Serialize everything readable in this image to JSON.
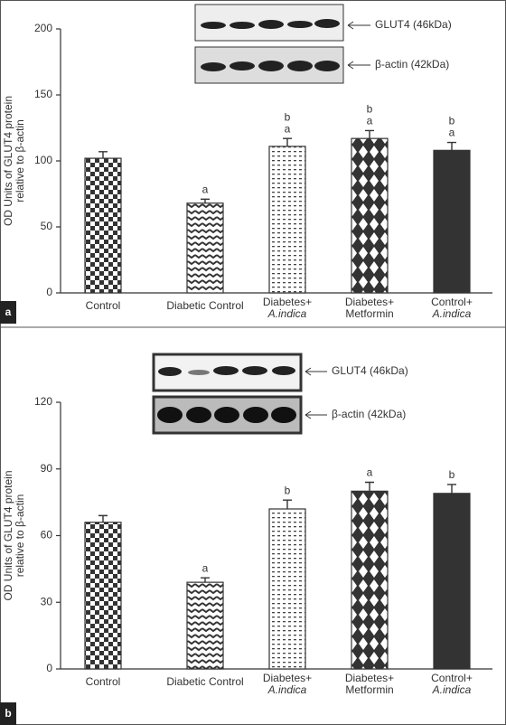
{
  "chart_data": [
    {
      "type": "bar",
      "panel_label": "a",
      "ylabel": [
        "OD Units of GLUT4  protein",
        "relative to β-actin"
      ],
      "blot_labels": [
        "GLUT4 (46kDa)",
        "β-actin (42kDa)"
      ],
      "categories": [
        [
          "Control"
        ],
        [
          "Diabetic Control"
        ],
        [
          "Diabetes+",
          "A.indica"
        ],
        [
          "Diabetes+",
          "Metformin"
        ],
        [
          "Control+",
          "A.indica"
        ]
      ],
      "values": [
        102,
        68,
        111,
        117,
        108
      ],
      "errors": [
        5,
        3,
        6,
        6,
        6
      ],
      "annotations": [
        null,
        [
          "a"
        ],
        [
          "a",
          "b"
        ],
        [
          "a",
          "b"
        ],
        [
          "a",
          "b"
        ]
      ],
      "ylim": [
        0,
        200
      ],
      "yticks": [
        0,
        50,
        100,
        150,
        200
      ]
    },
    {
      "type": "bar",
      "panel_label": "b",
      "ylabel": [
        "OD Units of GLUT4  protein",
        "relative to β-actin"
      ],
      "blot_labels": [
        "GLUT4 (46kDa)",
        "β-actin (42kDa)"
      ],
      "categories": [
        [
          "Control"
        ],
        [
          "Diabetic Control"
        ],
        [
          "Diabetes+",
          "A.indica"
        ],
        [
          "Diabetes+",
          "Metformin"
        ],
        [
          "Control+",
          "A.indica"
        ]
      ],
      "values": [
        66,
        39,
        72,
        80,
        79
      ],
      "errors": [
        3,
        2,
        4,
        4,
        4
      ],
      "annotations": [
        null,
        [
          "a"
        ],
        [
          "b"
        ],
        [
          "a"
        ],
        [
          "b"
        ]
      ],
      "ylim": [
        0,
        120
      ],
      "yticks": [
        0,
        30,
        60,
        90,
        120
      ]
    }
  ]
}
